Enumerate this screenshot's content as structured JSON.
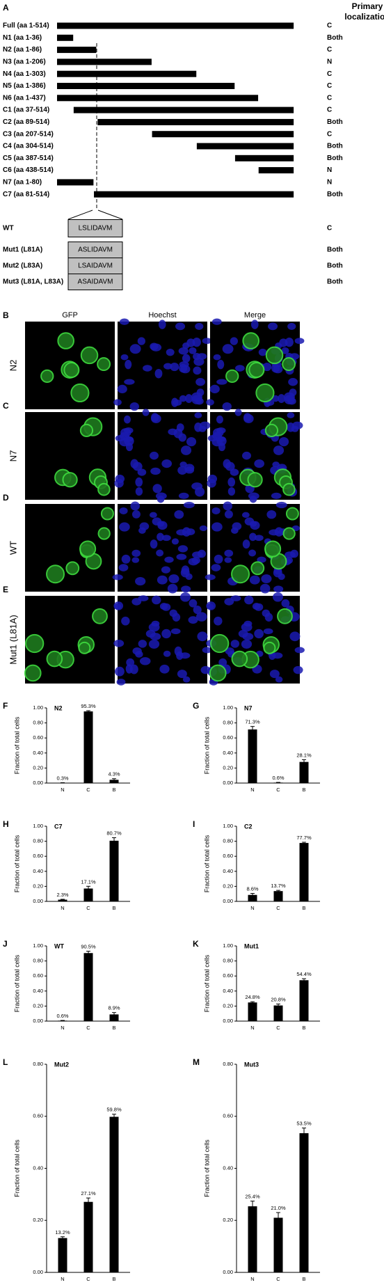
{
  "panel_a": {
    "letter": "A",
    "header_lines": [
      "Primary",
      "localization"
    ],
    "constructs": [
      {
        "label": "Full (aa 1-514)",
        "start": 1,
        "end": 514,
        "localization": "C"
      },
      {
        "label": "N1 (aa 1-36)",
        "start": 1,
        "end": 36,
        "localization": "Both"
      },
      {
        "label": "N2 (aa 1-86)",
        "start": 1,
        "end": 86,
        "localization": "C"
      },
      {
        "label": "N3 (aa 1-206)",
        "start": 1,
        "end": 206,
        "localization": "N"
      },
      {
        "label": "N4 (aa 1-303)",
        "start": 1,
        "end": 303,
        "localization": "C"
      },
      {
        "label": "N5 (aa 1-386)",
        "start": 1,
        "end": 386,
        "localization": "C"
      },
      {
        "label": "N6 (aa 1-437)",
        "start": 1,
        "end": 437,
        "localization": "C"
      },
      {
        "label": "C1 (aa 37-514)",
        "start": 37,
        "end": 514,
        "localization": "C"
      },
      {
        "label": "C2 (aa 89-514)",
        "start": 89,
        "end": 514,
        "localization": "Both"
      },
      {
        "label": "C3 (aa 207-514)",
        "start": 207,
        "end": 514,
        "localization": "C"
      },
      {
        "label": "C4 (aa 304-514)",
        "start": 304,
        "end": 514,
        "localization": "Both"
      },
      {
        "label": "C5 (aa 387-514)",
        "start": 387,
        "end": 514,
        "localization": "Both"
      },
      {
        "label": "C6 (aa 438-514)",
        "start": 438,
        "end": 514,
        "localization": "N"
      },
      {
        "label": "N7 (aa 1-80)",
        "start": 1,
        "end": 80,
        "localization": "N"
      },
      {
        "label": "C7 (aa 81-514)",
        "start": 81,
        "end": 514,
        "localization": "Both"
      }
    ],
    "motifs": [
      {
        "name": "WT",
        "sequence": "LSLIDAVM",
        "localization": "C"
      },
      {
        "name": "Mut1 (L81A)",
        "sequence": "ASLIDAVM",
        "localization": "Both"
      },
      {
        "name": "Mut2 (L83A)",
        "sequence": "LSAIDAVM",
        "localization": "Both"
      },
      {
        "name": "Mut3 (L81A, L83A)",
        "sequence": "ASAIDAVM",
        "localization": "Both"
      }
    ]
  },
  "micrographs": {
    "columns": [
      "GFP",
      "Hoechst",
      "Merge"
    ],
    "rows": [
      {
        "letter": "B",
        "label": "N2"
      },
      {
        "letter": "C",
        "label": "N7"
      },
      {
        "letter": "D",
        "label": "WT"
      },
      {
        "letter": "E",
        "label": "Mut1 (L81A)"
      }
    ]
  },
  "chart_data": [
    {
      "type": "bar",
      "panel": "F",
      "title": "N2",
      "y_label": "Fraction of total cells",
      "categories": [
        "N",
        "C",
        "B"
      ],
      "values": [
        0.003,
        0.953,
        0.043
      ],
      "value_labels": [
        "0.3%",
        "95.3%",
        "4.3%"
      ],
      "errors": [
        0.002,
        0.01,
        0.015
      ],
      "color": "#000000",
      "ylim": [
        0,
        1
      ],
      "yticks": [
        {
          "value": 0,
          "label": "0.00"
        },
        {
          "value": 0.2,
          "label": "0.20"
        },
        {
          "value": 0.4,
          "label": "0.40"
        },
        {
          "value": 0.6,
          "label": "0.60"
        },
        {
          "value": 0.8,
          "label": "0.80"
        },
        {
          "value": 1,
          "label": "1.00"
        }
      ]
    },
    {
      "type": "bar",
      "panel": "G",
      "title": "N7",
      "y_label": "Fraction of total cells",
      "categories": [
        "N",
        "C",
        "B"
      ],
      "values": [
        0.713,
        0.006,
        0.281
      ],
      "value_labels": [
        "71.3%",
        "0.6%",
        "28.1%"
      ],
      "errors": [
        0.04,
        0.003,
        0.03
      ],
      "color": "#000000",
      "ylim": [
        0,
        1
      ],
      "yticks": [
        {
          "value": 0,
          "label": "0.00"
        },
        {
          "value": 0.2,
          "label": "0.20"
        },
        {
          "value": 0.4,
          "label": "0.40"
        },
        {
          "value": 0.6,
          "label": "0.60"
        },
        {
          "value": 0.8,
          "label": "0.80"
        },
        {
          "value": 1,
          "label": "1.00"
        }
      ]
    },
    {
      "type": "bar",
      "panel": "H",
      "title": "C7",
      "y_label": "Fraction of total cells",
      "categories": [
        "N",
        "C",
        "B"
      ],
      "values": [
        0.023,
        0.171,
        0.807
      ],
      "value_labels": [
        "2.3%",
        "17.1%",
        "80.7%"
      ],
      "errors": [
        0.005,
        0.03,
        0.04
      ],
      "color": "#000000",
      "ylim": [
        0,
        1
      ],
      "yticks": [
        {
          "value": 0,
          "label": "0.00"
        },
        {
          "value": 0.2,
          "label": "0.20"
        },
        {
          "value": 0.4,
          "label": "0.40"
        },
        {
          "value": 0.6,
          "label": "0.60"
        },
        {
          "value": 0.8,
          "label": "0.80"
        },
        {
          "value": 1,
          "label": "1.00"
        }
      ]
    },
    {
      "type": "bar",
      "panel": "I",
      "title": "C2",
      "y_label": "Fraction of total cells",
      "categories": [
        "N",
        "C",
        "B"
      ],
      "values": [
        0.086,
        0.137,
        0.777
      ],
      "value_labels": [
        "8.6%",
        "13.7%",
        "77.7%"
      ],
      "errors": [
        0.02,
        0.01,
        0.01
      ],
      "color": "#000000",
      "ylim": [
        0,
        1
      ],
      "yticks": [
        {
          "value": 0,
          "label": "0.00"
        },
        {
          "value": 0.2,
          "label": "0.20"
        },
        {
          "value": 0.4,
          "label": "0.40"
        },
        {
          "value": 0.6,
          "label": "0.60"
        },
        {
          "value": 0.8,
          "label": "0.80"
        },
        {
          "value": 1,
          "label": "1.00"
        }
      ]
    },
    {
      "type": "bar",
      "panel": "J",
      "title": "WT",
      "y_label": "Fraction of total cells",
      "categories": [
        "N",
        "C",
        "B"
      ],
      "values": [
        0.006,
        0.905,
        0.089
      ],
      "value_labels": [
        "0.6%",
        "90.5%",
        "8.9%"
      ],
      "errors": [
        0.003,
        0.025,
        0.025
      ],
      "color": "#000000",
      "ylim": [
        0,
        1
      ],
      "yticks": [
        {
          "value": 0,
          "label": "0.00"
        },
        {
          "value": 0.2,
          "label": "0.20"
        },
        {
          "value": 0.4,
          "label": "0.40"
        },
        {
          "value": 0.6,
          "label": "0.60"
        },
        {
          "value": 0.8,
          "label": "0.80"
        },
        {
          "value": 1,
          "label": "1.00"
        }
      ]
    },
    {
      "type": "bar",
      "panel": "K",
      "title": "Mut1",
      "y_label": "Fraction of total cells",
      "categories": [
        "N",
        "C",
        "B"
      ],
      "values": [
        0.248,
        0.208,
        0.544
      ],
      "value_labels": [
        "24.8%",
        "20.8%",
        "54.4%"
      ],
      "errors": [
        0.01,
        0.02,
        0.02
      ],
      "color": "#000000",
      "ylim": [
        0,
        1
      ],
      "yticks": [
        {
          "value": 0,
          "label": "0.00"
        },
        {
          "value": 0.2,
          "label": "0.20"
        },
        {
          "value": 0.4,
          "label": "0.40"
        },
        {
          "value": 0.6,
          "label": "0.60"
        },
        {
          "value": 0.8,
          "label": "0.80"
        },
        {
          "value": 1,
          "label": "1.00"
        }
      ]
    },
    {
      "type": "bar",
      "panel": "L",
      "title": "Mut2",
      "y_label": "Fraction of total cells",
      "categories": [
        "N",
        "C",
        "B"
      ],
      "values": [
        0.132,
        0.271,
        0.598
      ],
      "value_labels": [
        "13.2%",
        "27.1%",
        "59.8%"
      ],
      "errors": [
        0.005,
        0.015,
        0.01
      ],
      "color": "#000000",
      "ylim": [
        0,
        0.8
      ],
      "yticks": [
        {
          "value": 0,
          "label": "0.00"
        },
        {
          "value": 0.2,
          "label": "0.20"
        },
        {
          "value": 0.4,
          "label": "0.40"
        },
        {
          "value": 0.6,
          "label": "0.60"
        },
        {
          "value": 0.8,
          "label": "0.80"
        }
      ]
    },
    {
      "type": "bar",
      "panel": "M",
      "title": "Mut3",
      "y_label": "Fraction of total cells",
      "categories": [
        "N",
        "C",
        "B"
      ],
      "values": [
        0.254,
        0.21,
        0.535
      ],
      "value_labels": [
        "25.4%",
        "21.0%",
        "53.5%"
      ],
      "errors": [
        0.02,
        0.02,
        0.02
      ],
      "color": "#000000",
      "ylim": [
        0,
        0.8
      ],
      "yticks": [
        {
          "value": 0,
          "label": "0.00"
        },
        {
          "value": 0.2,
          "label": "0.20"
        },
        {
          "value": 0.4,
          "label": "0.40"
        },
        {
          "value": 0.6,
          "label": "0.60"
        },
        {
          "value": 0.8,
          "label": "0.80"
        }
      ]
    }
  ]
}
